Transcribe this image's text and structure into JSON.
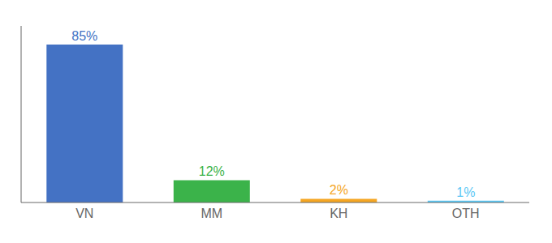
{
  "chart_data": {
    "type": "bar",
    "categories": [
      "VN",
      "MM",
      "KH",
      "OTH"
    ],
    "values": [
      85,
      12,
      2,
      1
    ],
    "value_labels": [
      "85%",
      "12%",
      "2%",
      "1%"
    ],
    "colors": [
      "#4472c4",
      "#3bb34a",
      "#f5a623",
      "#5bc8f5"
    ],
    "ylim": [
      0,
      95
    ],
    "tick_labels": "x",
    "data_labels": true,
    "grid": false
  }
}
